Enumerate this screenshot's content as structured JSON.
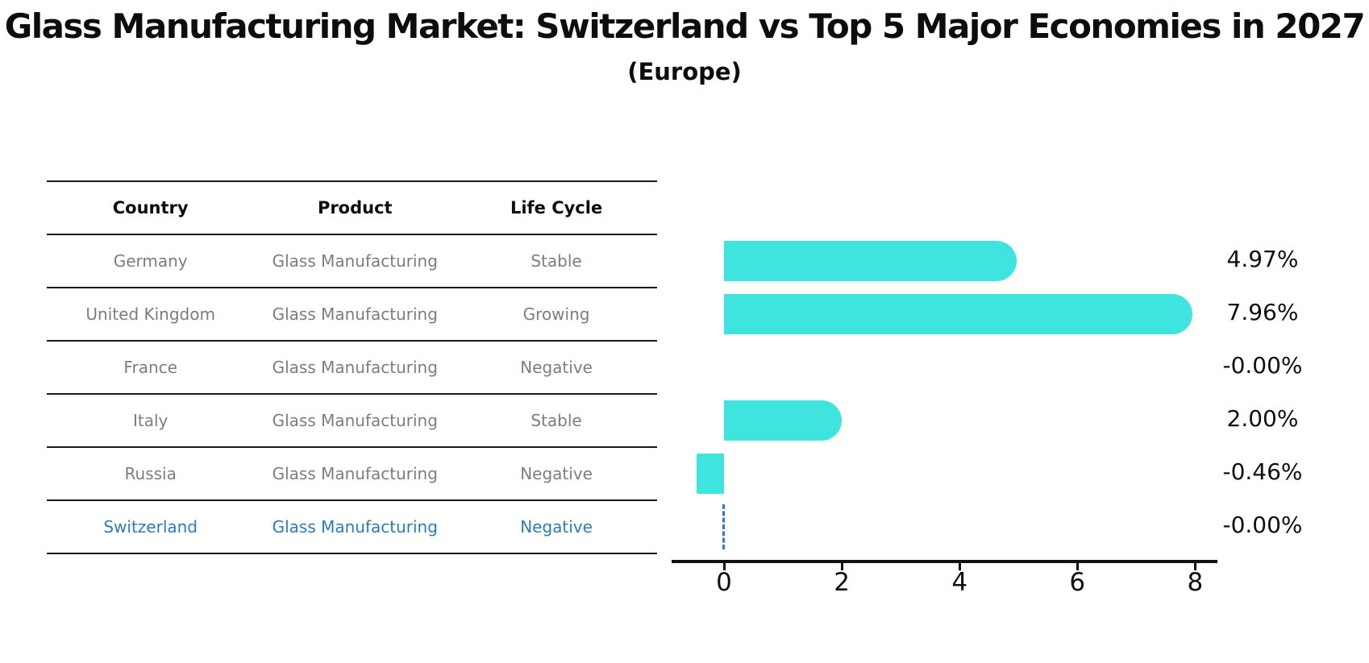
{
  "title": "Glass Manufacturing Market: Switzerland vs Top 5 Major Economies in 2027",
  "subtitle": "(Europe)",
  "table": {
    "headers": [
      "Country",
      "Product",
      "Life Cycle"
    ],
    "rows": [
      {
        "country": "Germany",
        "product": "Glass Manufacturing",
        "life_cycle": "Stable",
        "highlight": false
      },
      {
        "country": "United Kingdom",
        "product": "Glass Manufacturing",
        "life_cycle": "Growing",
        "highlight": false
      },
      {
        "country": "France",
        "product": "Glass Manufacturing",
        "life_cycle": "Negative",
        "highlight": false
      },
      {
        "country": "Italy",
        "product": "Glass Manufacturing",
        "life_cycle": "Stable",
        "highlight": false
      },
      {
        "country": "Russia",
        "product": "Glass Manufacturing",
        "life_cycle": "Negative",
        "highlight": false
      },
      {
        "country": "Switzerland",
        "product": "Glass Manufacturing",
        "life_cycle": "Negative",
        "highlight": true
      }
    ]
  },
  "chart_data": {
    "type": "bar",
    "orientation": "horizontal",
    "title": "Glass Manufacturing Market: Switzerland vs Top 5 Major Economies in 2027",
    "subtitle": "(Europe)",
    "categories": [
      "Germany",
      "United Kingdom",
      "France",
      "Italy",
      "Russia",
      "Switzerland"
    ],
    "values": [
      4.97,
      7.96,
      -0.0,
      2.0,
      -0.46,
      -0.0
    ],
    "value_labels": [
      "4.97%",
      "7.96%",
      "-0.00%",
      "2.00%",
      "-0.46%",
      "-0.00%"
    ],
    "xlabel": "",
    "ylabel": "",
    "xticks": [
      0,
      2,
      4,
      6,
      8
    ],
    "xlim": [
      -0.9,
      8.4
    ],
    "grid": false,
    "legend": false,
    "bar_color": "#3fe4de",
    "text_color_muted": "#7d7d7d",
    "highlight_country": "Switzerland",
    "highlight_color": "#2b7bbd",
    "highlight_marker": "dashed line at zero"
  }
}
